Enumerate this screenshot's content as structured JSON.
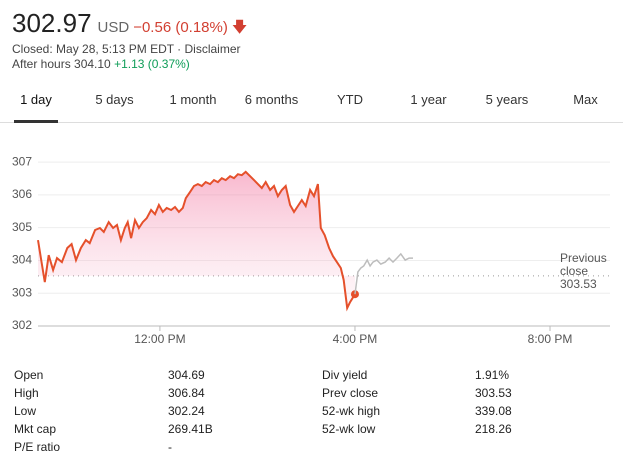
{
  "header": {
    "price": "302.97",
    "currency": "USD",
    "change": "−0.56 (0.18%)",
    "closed": "Closed: May 28, 5:13 PM EDT · Disclaimer",
    "after_hours": "After hours 304.10",
    "after_hours_change": "+1.13 (0.37%)"
  },
  "tabs": [
    "1 day",
    "5 days",
    "1 month",
    "6 months",
    "YTD",
    "1 year",
    "5 years",
    "Max"
  ],
  "chart_data": {
    "type": "line",
    "series": [
      {
        "name": "Regular session",
        "color": "#e5502b",
        "x": [
          9.5,
          9.56,
          9.64,
          9.72,
          9.81,
          9.89,
          9.99,
          10.1,
          10.19,
          10.28,
          10.38,
          10.48,
          10.56,
          10.67,
          10.77,
          10.85,
          10.95,
          11.04,
          11.12,
          11.2,
          11.28,
          11.34,
          11.41,
          11.49,
          11.57,
          11.65,
          11.73,
          11.82,
          11.9,
          11.98,
          12.06,
          12.14,
          12.23,
          12.31,
          12.39,
          12.47,
          12.53,
          12.62,
          12.7,
          12.78,
          12.86,
          12.94,
          13.03,
          13.11,
          13.19,
          13.27,
          13.35,
          13.44,
          13.52,
          13.6,
          13.68,
          13.76,
          13.85,
          13.93,
          14.01,
          14.09,
          14.17,
          14.26,
          14.34,
          14.42,
          14.5,
          14.58,
          14.67,
          14.75,
          14.83,
          14.91,
          14.99,
          15.08,
          15.16,
          15.24,
          15.3,
          15.38,
          15.47,
          15.55,
          15.63,
          15.71,
          15.77,
          15.84,
          15.9,
          16.0
        ],
        "values": [
          304.62,
          304.07,
          303.34,
          304.16,
          303.71,
          304.07,
          303.95,
          304.38,
          304.5,
          304.01,
          304.38,
          304.62,
          304.53,
          304.93,
          304.99,
          304.87,
          305.17,
          304.99,
          305.08,
          304.62,
          304.99,
          305.17,
          304.68,
          305.23,
          304.99,
          305.17,
          305.29,
          305.54,
          305.41,
          305.69,
          305.48,
          305.6,
          305.54,
          305.63,
          305.48,
          305.6,
          305.9,
          306.09,
          306.27,
          306.33,
          306.27,
          306.39,
          306.33,
          306.45,
          306.39,
          306.51,
          306.45,
          306.57,
          306.51,
          306.63,
          306.6,
          306.7,
          306.57,
          306.45,
          306.33,
          306.21,
          306.39,
          306.15,
          306.27,
          305.96,
          306.15,
          306.27,
          305.69,
          305.48,
          305.66,
          305.84,
          305.66,
          306.15,
          305.96,
          306.33,
          304.99,
          304.77,
          304.38,
          304.13,
          303.95,
          303.77,
          303.4,
          302.55,
          302.73,
          302.97
        ]
      },
      {
        "name": "After hours",
        "color": "#bdbdbd",
        "x": [
          16.0,
          16.06,
          16.12,
          16.18,
          16.25,
          16.31,
          16.37,
          16.45,
          16.53,
          16.62,
          16.7,
          16.78,
          16.86,
          16.94,
          17.03,
          17.11,
          17.19
        ],
        "values": [
          302.97,
          303.65,
          303.77,
          303.83,
          304.01,
          303.83,
          303.95,
          304.01,
          303.89,
          303.95,
          304.07,
          303.95,
          304.07,
          304.2,
          304.01,
          304.07,
          304.07
        ]
      }
    ],
    "xlim": [
      9.5,
      21.23
    ],
    "xticks": [
      {
        "value": 12,
        "label": "12:00 PM"
      },
      {
        "value": 16,
        "label": "4:00 PM"
      },
      {
        "value": 20,
        "label": "8:00 PM"
      }
    ],
    "ylim": [
      302,
      307.4
    ],
    "yticks": [
      302,
      303,
      304,
      305,
      306,
      307
    ],
    "grid": true,
    "reference_line": {
      "label": "Previous close",
      "value": 303.53
    }
  },
  "stats": {
    "left": [
      [
        "Open",
        "304.69"
      ],
      [
        "High",
        "306.84"
      ],
      [
        "Low",
        "302.24"
      ],
      [
        "Mkt cap",
        "269.41B"
      ],
      [
        "P/E ratio",
        "-"
      ]
    ],
    "right": [
      [
        "Div yield",
        "1.91%"
      ],
      [
        "Prev close",
        "303.53"
      ],
      [
        "52-wk high",
        "339.08"
      ],
      [
        "52-wk low",
        "218.26"
      ]
    ]
  }
}
